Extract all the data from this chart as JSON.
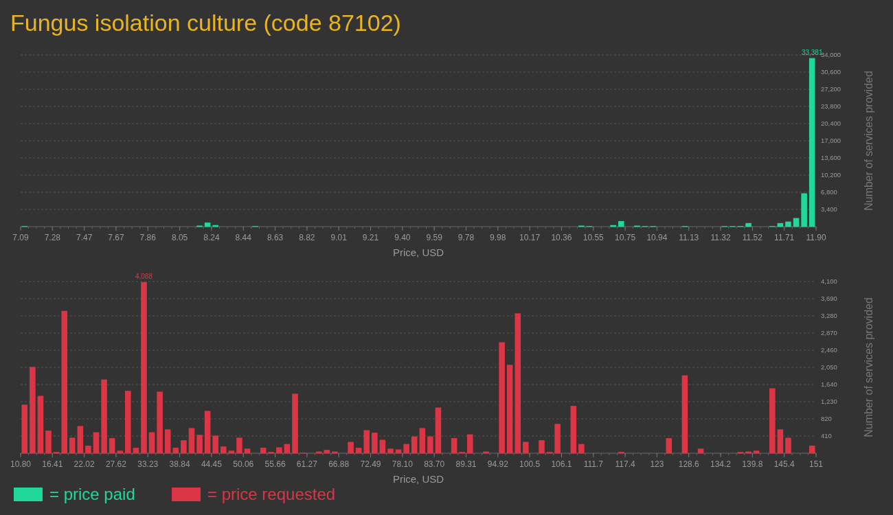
{
  "chart_data": [
    {
      "type": "histogram",
      "title": "Fungus isolation culture (code 87102)",
      "xlabel": "Price, USD",
      "ylabel": "Number of services provided",
      "bins": [
        7.09,
        7.1381,
        7.1862,
        7.2343,
        7.2824,
        7.3305,
        7.3786,
        7.4267,
        7.4748,
        7.5229,
        7.571,
        7.6191,
        7.6672,
        7.7153,
        7.7634,
        7.8115,
        7.8596,
        7.9077,
        7.9558,
        8.0039,
        8.052,
        8.1001,
        8.1482,
        8.1963,
        8.2444,
        8.2925,
        8.3406,
        8.3887,
        8.4368,
        8.4849,
        8.533,
        8.5811,
        8.6292,
        8.6773,
        8.7254,
        8.7735,
        8.8216,
        8.8697,
        8.9178,
        8.9659,
        9.014,
        9.0621,
        9.1102,
        9.1583,
        9.2064,
        9.2545,
        9.3026,
        9.3507,
        9.3988,
        9.4469,
        9.495,
        9.5431,
        9.5912,
        9.6393,
        9.6874,
        9.7355,
        9.7836,
        9.8317,
        9.8798,
        9.9279,
        9.976,
        10.0241,
        10.0722,
        10.1203,
        10.1684,
        10.2165,
        10.2646,
        10.3127,
        10.3608,
        10.4089,
        10.457,
        10.5051,
        10.5532,
        10.6013,
        10.6494,
        10.6975,
        10.7456,
        10.7937,
        10.8418,
        10.8899,
        10.938,
        10.9861,
        11.0342,
        11.0823,
        11.1304,
        11.1785,
        11.2266,
        11.2747,
        11.3228,
        11.3709,
        11.419,
        11.4671,
        11.5152,
        11.5633,
        11.6114,
        11.6595,
        11.7076,
        11.7557,
        11.8038,
        11.8519,
        11.9
      ],
      "series": [
        {
          "name": "= price paid",
          "color": "#20d89a",
          "values": [
            100,
            0,
            0,
            0,
            0,
            0,
            0,
            0,
            0,
            0,
            0,
            0,
            0,
            0,
            0,
            0,
            0,
            0,
            0,
            0,
            0,
            0,
            200,
            800,
            300,
            0,
            0,
            0,
            0,
            100,
            0,
            0,
            0,
            0,
            0,
            0,
            0,
            0,
            0,
            0,
            0,
            0,
            0,
            0,
            0,
            0,
            0,
            0,
            0,
            0,
            0,
            0,
            0,
            0,
            0,
            0,
            0,
            0,
            0,
            0,
            0,
            0,
            0,
            0,
            0,
            0,
            0,
            0,
            0,
            0,
            200,
            100,
            0,
            0,
            300,
            1100,
            0,
            200,
            100,
            100,
            0,
            0,
            0,
            100,
            0,
            0,
            0,
            0,
            100,
            100,
            100,
            700,
            0,
            0,
            100,
            700,
            1000,
            1700,
            6600,
            33381
          ],
          "value_labels": [
            null,
            null,
            null,
            null,
            null,
            null,
            null,
            null,
            null,
            null,
            null,
            null,
            null,
            null,
            null,
            null,
            null,
            null,
            null,
            null,
            null,
            null,
            null,
            null,
            null,
            null,
            null,
            null,
            null,
            null,
            null,
            null,
            null,
            null,
            null,
            null,
            null,
            null,
            null,
            null,
            null,
            null,
            null,
            null,
            null,
            null,
            null,
            null,
            null,
            null,
            null,
            null,
            null,
            null,
            null,
            null,
            null,
            null,
            null,
            null,
            null,
            null,
            null,
            null,
            null,
            null,
            null,
            null,
            null,
            null,
            null,
            null,
            null,
            null,
            null,
            null,
            null,
            null,
            null,
            null,
            null,
            null,
            null,
            null,
            null,
            null,
            null,
            null,
            null,
            null,
            null,
            null,
            null,
            null,
            null,
            null,
            null,
            null,
            null,
            "33,381"
          ]
        }
      ],
      "xlim": [
        7.09,
        11.9
      ],
      "xticks": [
        {
          "value": 7.09,
          "label": "7.09"
        },
        {
          "value": 7.2824,
          "label": "7.28"
        },
        {
          "value": 7.4748,
          "label": "7.47"
        },
        {
          "value": 7.6672,
          "label": "7.67"
        },
        {
          "value": 7.8596,
          "label": "7.86"
        },
        {
          "value": 8.052,
          "label": "8.05"
        },
        {
          "value": 8.2444,
          "label": "8.24"
        },
        {
          "value": 8.4368,
          "label": "8.44"
        },
        {
          "value": 8.6292,
          "label": "8.63"
        },
        {
          "value": 8.8216,
          "label": "8.82"
        },
        {
          "value": 9.014,
          "label": "9.01"
        },
        {
          "value": 9.2064,
          "label": "9.21"
        },
        {
          "value": 9.3988,
          "label": "9.40"
        },
        {
          "value": 9.5912,
          "label": "9.59"
        },
        {
          "value": 9.7836,
          "label": "9.78"
        },
        {
          "value": 9.976,
          "label": "9.98"
        },
        {
          "value": 10.1684,
          "label": "10.17"
        },
        {
          "value": 10.3608,
          "label": "10.36"
        },
        {
          "value": 10.5532,
          "label": "10.55"
        },
        {
          "value": 10.7456,
          "label": "10.75"
        },
        {
          "value": 10.938,
          "label": "10.94"
        },
        {
          "value": 11.1304,
          "label": "11.13"
        },
        {
          "value": 11.3228,
          "label": "11.32"
        },
        {
          "value": 11.5152,
          "label": "11.52"
        },
        {
          "value": 11.7076,
          "label": "11.71"
        },
        {
          "value": 11.9,
          "label": "11.90"
        }
      ],
      "ylim": [
        0,
        34000
      ],
      "yticks": [
        {
          "value": 3400,
          "label": "3,400"
        },
        {
          "value": 6800,
          "label": "6,800"
        },
        {
          "value": 10200,
          "label": "10,200"
        },
        {
          "value": 13600,
          "label": "13,600"
        },
        {
          "value": 17000,
          "label": "17,000"
        },
        {
          "value": 20400,
          "label": "20,400"
        },
        {
          "value": 23800,
          "label": "23,800"
        },
        {
          "value": 27200,
          "label": "27,200"
        },
        {
          "value": 30600,
          "label": "30,600"
        },
        {
          "value": 34000,
          "label": "34,000"
        }
      ],
      "grid": "y",
      "legend": "bottom"
    },
    {
      "type": "histogram",
      "xlabel": "Price, USD",
      "ylabel": "Number of services provided",
      "bins": [
        10.8,
        12.202,
        13.604,
        15.006,
        16.408,
        17.81,
        19.212,
        20.614,
        22.016,
        23.418,
        24.82,
        26.222,
        27.624,
        29.026,
        30.428,
        31.83,
        33.232,
        34.634,
        36.036,
        37.438,
        38.84,
        40.242,
        41.644,
        43.046,
        44.448,
        45.85,
        47.252,
        48.654,
        50.056,
        51.458,
        52.86,
        54.262,
        55.664,
        57.066,
        58.468,
        59.87,
        61.272,
        62.674,
        64.076,
        65.478,
        66.88,
        68.282,
        69.684,
        71.086,
        72.488,
        73.89,
        75.292,
        76.694,
        78.096,
        79.498,
        80.9,
        82.302,
        83.704,
        85.106,
        86.508,
        87.91,
        89.312,
        90.714,
        92.116,
        93.518,
        94.92,
        96.322,
        97.724,
        99.126,
        100.528,
        101.93,
        103.332,
        104.734,
        106.136,
        107.538,
        108.94,
        110.342,
        111.744,
        113.146,
        114.548,
        115.95,
        117.352,
        118.754,
        120.156,
        121.558,
        122.96,
        124.362,
        125.764,
        127.166,
        128.568,
        129.97,
        131.372,
        132.774,
        134.176,
        135.578,
        136.98,
        138.382,
        139.784,
        141.186,
        142.588,
        143.99,
        145.392,
        146.794,
        148.196,
        149.598,
        151
      ],
      "series": [
        {
          "name": "= price requested",
          "color": "#dc3545",
          "values": [
            1160,
            2060,
            1370,
            540,
            30,
            3400,
            370,
            650,
            180,
            500,
            1760,
            360,
            60,
            1490,
            130,
            4088,
            500,
            1470,
            570,
            130,
            310,
            600,
            440,
            1010,
            420,
            160,
            60,
            370,
            110,
            0,
            130,
            30,
            140,
            220,
            1420,
            10,
            0,
            40,
            80,
            40,
            0,
            270,
            130,
            550,
            490,
            320,
            110,
            90,
            220,
            400,
            600,
            400,
            1090,
            0,
            360,
            30,
            450,
            0,
            40,
            0,
            2650,
            2110,
            3340,
            270,
            0,
            310,
            30,
            700,
            0,
            1130,
            220,
            0,
            0,
            0,
            0,
            30,
            0,
            0,
            0,
            0,
            0,
            360,
            0,
            1860,
            0,
            110,
            0,
            0,
            0,
            0,
            30,
            40,
            60,
            0,
            1550,
            570,
            370,
            0,
            0,
            180
          ],
          "value_labels": [
            null,
            null,
            null,
            null,
            null,
            null,
            null,
            null,
            null,
            null,
            null,
            null,
            null,
            null,
            null,
            "4,088",
            null,
            null,
            null,
            null,
            null,
            null,
            null,
            null,
            null,
            null,
            null,
            null,
            null,
            null,
            null,
            null,
            null,
            null,
            null,
            null,
            null,
            null,
            null,
            null,
            null,
            null,
            null,
            null,
            null,
            null,
            null,
            null,
            null,
            null,
            null,
            null,
            null,
            null,
            null,
            null,
            null,
            null,
            null,
            null,
            null,
            null,
            null,
            null,
            null,
            null,
            null,
            null,
            null,
            null,
            null,
            null,
            null,
            null,
            null,
            null,
            null,
            null,
            null,
            null,
            null,
            null,
            null,
            null,
            null,
            null,
            null,
            null,
            null,
            null,
            null,
            null,
            null,
            null,
            null,
            null,
            null,
            null,
            null,
            null
          ]
        }
      ],
      "xlim": [
        10.8,
        151
      ],
      "xticks": [
        {
          "value": 10.8,
          "label": "10.80"
        },
        {
          "value": 16.408,
          "label": "16.41"
        },
        {
          "value": 22.016,
          "label": "22.02"
        },
        {
          "value": 27.624,
          "label": "27.62"
        },
        {
          "value": 33.232,
          "label": "33.23"
        },
        {
          "value": 38.84,
          "label": "38.84"
        },
        {
          "value": 44.448,
          "label": "44.45"
        },
        {
          "value": 50.056,
          "label": "50.06"
        },
        {
          "value": 55.664,
          "label": "55.66"
        },
        {
          "value": 61.272,
          "label": "61.27"
        },
        {
          "value": 66.88,
          "label": "66.88"
        },
        {
          "value": 72.488,
          "label": "72.49"
        },
        {
          "value": 78.096,
          "label": "78.10"
        },
        {
          "value": 83.704,
          "label": "83.70"
        },
        {
          "value": 89.312,
          "label": "89.31"
        },
        {
          "value": 94.92,
          "label": "94.92"
        },
        {
          "value": 100.528,
          "label": "100.5"
        },
        {
          "value": 106.136,
          "label": "106.1"
        },
        {
          "value": 111.744,
          "label": "111.7"
        },
        {
          "value": 117.352,
          "label": "117.4"
        },
        {
          "value": 122.96,
          "label": "123"
        },
        {
          "value": 128.568,
          "label": "128.6"
        },
        {
          "value": 134.176,
          "label": "134.2"
        },
        {
          "value": 139.784,
          "label": "139.8"
        },
        {
          "value": 145.392,
          "label": "145.4"
        },
        {
          "value": 151,
          "label": "151"
        }
      ],
      "ylim": [
        0,
        4100
      ],
      "yticks": [
        {
          "value": 410,
          "label": "410"
        },
        {
          "value": 820,
          "label": "820"
        },
        {
          "value": 1230,
          "label": "1,230"
        },
        {
          "value": 1640,
          "label": "1,640"
        },
        {
          "value": 2050,
          "label": "2,050"
        },
        {
          "value": 2460,
          "label": "2,460"
        },
        {
          "value": 2870,
          "label": "2,870"
        },
        {
          "value": 3280,
          "label": "3,280"
        },
        {
          "value": 3690,
          "label": "3,690"
        },
        {
          "value": 4100,
          "label": "4,100"
        }
      ],
      "grid": "y",
      "legend": "bottom"
    }
  ]
}
